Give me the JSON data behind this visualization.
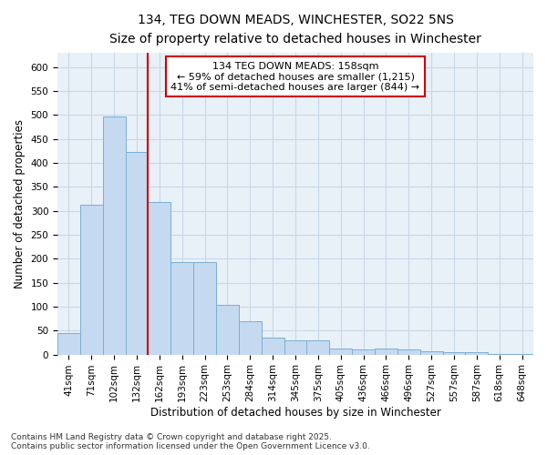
{
  "title_line1": "134, TEG DOWN MEADS, WINCHESTER, SO22 5NS",
  "title_line2": "Size of property relative to detached houses in Winchester",
  "xlabel": "Distribution of detached houses by size in Winchester",
  "ylabel": "Number of detached properties",
  "categories": [
    "41sqm",
    "71sqm",
    "102sqm",
    "132sqm",
    "162sqm",
    "193sqm",
    "223sqm",
    "253sqm",
    "284sqm",
    "314sqm",
    "345sqm",
    "375sqm",
    "405sqm",
    "436sqm",
    "466sqm",
    "496sqm",
    "527sqm",
    "557sqm",
    "587sqm",
    "618sqm",
    "648sqm"
  ],
  "values": [
    45,
    313,
    497,
    423,
    318,
    193,
    193,
    104,
    70,
    36,
    30,
    30,
    13,
    11,
    12,
    10,
    7,
    4,
    4,
    2,
    1
  ],
  "bar_color": "#c5d9f0",
  "bar_edge_color": "#7bafd4",
  "grid_color": "#c8d8e8",
  "bg_color": "#e8f0f8",
  "vline_x": 3.5,
  "vline_color": "#cc0000",
  "annotation_text": "134 TEG DOWN MEADS: 158sqm\n← 59% of detached houses are smaller (1,215)\n41% of semi-detached houses are larger (844) →",
  "annotation_box_color": "#cc0000",
  "footer_line1": "Contains HM Land Registry data © Crown copyright and database right 2025.",
  "footer_line2": "Contains public sector information licensed under the Open Government Licence v3.0.",
  "ylim": [
    0,
    630
  ],
  "yticks": [
    0,
    50,
    100,
    150,
    200,
    250,
    300,
    350,
    400,
    450,
    500,
    550,
    600
  ],
  "title_fontsize": 10,
  "subtitle_fontsize": 9,
  "axis_label_fontsize": 8.5,
  "tick_fontsize": 7.5,
  "footer_fontsize": 6.5,
  "annotation_fontsize": 8
}
